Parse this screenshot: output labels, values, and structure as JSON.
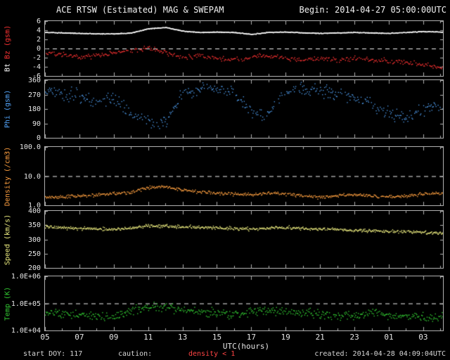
{
  "header": {
    "title": "ACE RTSW (Estimated) MAG & SWEPAM",
    "begin_label": "Begin: 2014-04-27 05:00:00UTC"
  },
  "footer": {
    "start_doy": "start DOY: 117",
    "caution_label": "caution:",
    "caution_value": "density < 1",
    "created": "created: 2014-04-28 04:09:04UTC"
  },
  "colors": {
    "background": "#000000",
    "axis": "#b0b0b0",
    "tick_text": "#e6e6e6",
    "dashed_line": "#f0f0f0",
    "bt": "#ffffff",
    "bz": "#ff3333",
    "phi": "#55a8ff",
    "density": "#ffa040",
    "speed": "#eeee80",
    "temp": "#33cc33",
    "caution": "#ff4444"
  },
  "chart_data": {
    "type": "scatter",
    "title": "ACE RTSW (Estimated) MAG & SWEPAM",
    "x": {
      "label": "UTC(hours)",
      "ticks": [
        "05",
        "07",
        "09",
        "11",
        "13",
        "15",
        "17",
        "19",
        "21",
        "23",
        "01",
        "03"
      ],
      "tick_values": [
        5,
        7,
        9,
        11,
        13,
        15,
        17,
        19,
        21,
        23,
        25,
        27
      ],
      "range": [
        5,
        28.15
      ]
    },
    "panels": [
      {
        "name": "mag",
        "scale": "linear",
        "ylim": [
          -6,
          6
        ],
        "yticks": [
          6,
          4,
          2,
          0,
          -2,
          -4,
          -6
        ],
        "ytick_labels": [
          "6",
          "4",
          "2",
          "0",
          "-2",
          "-4",
          "-6"
        ],
        "dashed_y": 0,
        "ylabel": [
          {
            "text": "Bt ",
            "color": "#ffffff"
          },
          {
            "text": "Bz (gsm)",
            "color": "#ff3333"
          }
        ],
        "series": [
          {
            "name": "Bt",
            "color": "#ffffff",
            "anchor_start": 5,
            "anchor_step": 1,
            "step": 0.02,
            "noise": 0.09,
            "dropout": 0,
            "size": 1.3,
            "anchors": [
              3.6,
              3.5,
              3.4,
              3.3,
              3.3,
              3.5,
              4.4,
              4.7,
              3.9,
              3.6,
              3.7,
              3.6,
              3.2,
              3.6,
              3.7,
              3.5,
              3.4,
              3.5,
              3.6,
              3.5,
              3.4,
              3.6,
              3.8,
              3.7
            ]
          },
          {
            "name": "Bz",
            "color": "#ff3333",
            "anchor_start": 5,
            "anchor_step": 1,
            "step": 0.05,
            "noise": 0.5,
            "dropout": 0.12,
            "size": 1.4,
            "anchors": [
              -0.8,
              -1.2,
              -1.8,
              -1.4,
              -0.9,
              -0.4,
              0.3,
              -0.9,
              -1.8,
              -1.5,
              -2.0,
              -2.4,
              -1.8,
              -1.5,
              -2.0,
              -2.4,
              -2.0,
              -2.4,
              -2.0,
              -2.4,
              -2.6,
              -3.0,
              -3.4,
              -4.1
            ]
          }
        ]
      },
      {
        "name": "phi",
        "scale": "linear",
        "wrap": true,
        "ylim": [
          0,
          360
        ],
        "yticks": [
          360,
          270,
          180,
          90,
          0
        ],
        "ytick_labels": [
          "360",
          "270",
          "180",
          "90",
          "0"
        ],
        "dashed_y": null,
        "ylabel": [
          {
            "text": "Phi (gsm)",
            "color": "#55a8ff"
          }
        ],
        "series": [
          {
            "name": "Phi",
            "color": "#55a8ff",
            "anchor_start": 5,
            "anchor_step": 1,
            "step": 0.04,
            "noise": 40,
            "dropout": 0.25,
            "size": 1.3,
            "anchors": [
              290,
              285,
              260,
              210,
              250,
              150,
              110,
              100,
              280,
              310,
              300,
              290,
              160,
              150,
              290,
              300,
              295,
              285,
              255,
              205,
              155,
              120,
              180,
              200
            ]
          }
        ]
      },
      {
        "name": "density",
        "scale": "log",
        "ylim": [
          1,
          100
        ],
        "yticks": [
          100,
          10,
          1
        ],
        "ytick_labels": [
          "100.0",
          "10.0",
          "1.0"
        ],
        "dashed_y": 10,
        "ylabel": [
          {
            "text": "Density (/cm3)",
            "color": "#ffa040"
          }
        ],
        "series": [
          {
            "name": "Density",
            "color": "#ffa040",
            "anchor_start": 5,
            "anchor_step": 1,
            "step": 0.04,
            "noise": 0.055,
            "dropout": 0.05,
            "size": 1.4,
            "anchors": [
              2.0,
              2.0,
              2.2,
              2.4,
              2.6,
              2.9,
              4.2,
              4.6,
              3.4,
              3.0,
              2.7,
              2.5,
              2.4,
              2.7,
              2.5,
              2.2,
              2.0,
              2.2,
              2.4,
              2.2,
              2.0,
              2.2,
              2.5,
              2.7
            ]
          }
        ]
      },
      {
        "name": "speed",
        "scale": "linear",
        "ylim": [
          200,
          400
        ],
        "yticks": [
          400,
          350,
          300,
          250,
          200
        ],
        "ytick_labels": [
          "400",
          "350",
          "300",
          "250",
          "200"
        ],
        "dashed_y": null,
        "ylabel": [
          {
            "text": "Speed (km/s)",
            "color": "#eeee80"
          }
        ],
        "series": [
          {
            "name": "Speed",
            "color": "#eeee80",
            "anchor_start": 5,
            "anchor_step": 1,
            "step": 0.035,
            "noise": 5.5,
            "dropout": 0.05,
            "size": 1.4,
            "anchors": [
              345,
              342,
              340,
              338,
              337,
              341,
              350,
              348,
              346,
              344,
              342,
              340,
              338,
              341,
              343,
              340,
              338,
              336,
              334,
              332,
              330,
              328,
              326,
              324
            ]
          }
        ]
      },
      {
        "name": "temp",
        "scale": "log",
        "ylim": [
          10000,
          1000000
        ],
        "yticks": [
          1000000,
          100000,
          10000
        ],
        "ytick_labels": [
          "1.0E+06",
          "1.0E+05",
          "1.0E+04"
        ],
        "dashed_y": 100000,
        "ylabel": [
          {
            "text": "Temp (K)",
            "color": "#33cc33"
          }
        ],
        "series": [
          {
            "name": "Temp",
            "color": "#33cc33",
            "anchor_start": 5,
            "anchor_step": 1,
            "step": 0.04,
            "noise": 0.16,
            "dropout": 0.1,
            "size": 1.4,
            "anchors": [
              50000,
              45000,
              40000,
              35000,
              32000,
              50000,
              79000,
              71000,
              63000,
              50000,
              45000,
              40000,
              50000,
              60000,
              50000,
              45000,
              40000,
              35000,
              40000,
              45000,
              40000,
              35000,
              32000,
              32000
            ]
          }
        ]
      }
    ]
  }
}
